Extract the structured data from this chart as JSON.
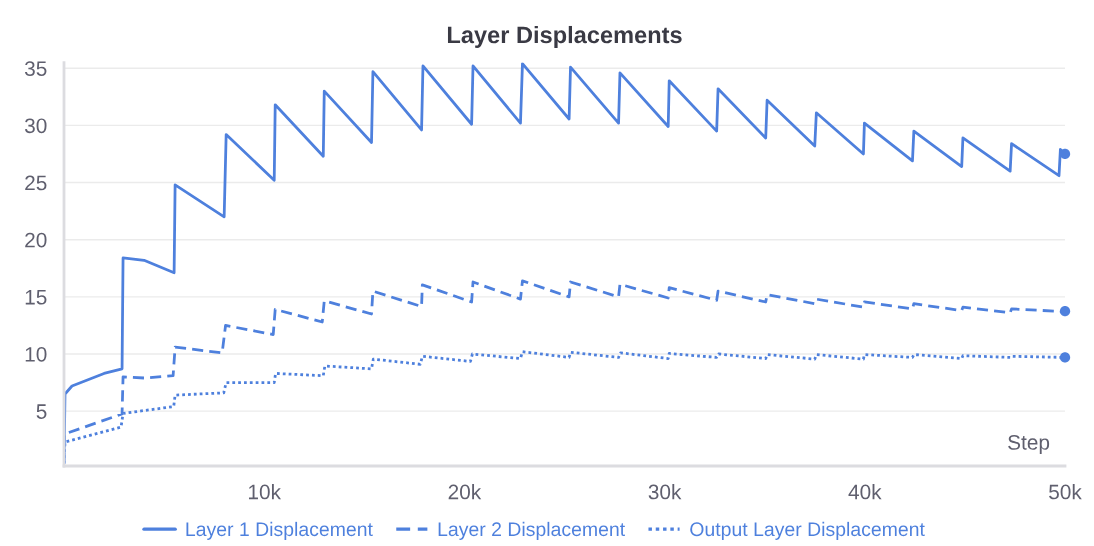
{
  "chart_data": {
    "type": "line",
    "title": "Layer Displacements",
    "xlabel": "Step",
    "xlim": [
      0,
      50000
    ],
    "xticks": [
      {
        "value": 10000,
        "label": "10k"
      },
      {
        "value": 20000,
        "label": "20k"
      },
      {
        "value": 30000,
        "label": "30k"
      },
      {
        "value": 40000,
        "label": "40k"
      },
      {
        "value": 50000,
        "label": "50k"
      }
    ],
    "ylim": [
      0.2,
      35.5
    ],
    "yticks": [
      5,
      10,
      15,
      20,
      25,
      30,
      35
    ],
    "grid": "y",
    "legend": "bottom",
    "series": [
      {
        "name": "Layer 1 Displacement",
        "color": "#4e80dd",
        "line_style": "solid",
        "x": [
          0,
          50,
          400,
          2000,
          2900,
          2950,
          4000,
          5500,
          5550,
          8000,
          8100,
          10500,
          10550,
          12950,
          13000,
          15360,
          15430,
          17860,
          17930,
          20360,
          20430,
          22800,
          22900,
          25230,
          25300,
          27700,
          27770,
          30180,
          30230,
          32600,
          32670,
          35050,
          35120,
          37500,
          37580,
          39930,
          39980,
          42380,
          42450,
          44840,
          44900,
          47260,
          47330,
          49700,
          49770,
          50000
        ],
        "values": [
          0.5,
          6.5,
          7.2,
          8.3,
          8.7,
          18.4,
          18.2,
          17.1,
          24.8,
          22.0,
          29.2,
          25.2,
          31.8,
          27.3,
          33.0,
          28.5,
          34.7,
          29.6,
          35.2,
          30.1,
          35.2,
          30.2,
          35.4,
          30.56,
          35.1,
          30.2,
          34.6,
          29.9,
          33.9,
          29.5,
          33.2,
          28.9,
          32.2,
          28.2,
          31.1,
          27.5,
          30.2,
          26.9,
          29.5,
          26.4,
          28.9,
          26.0,
          28.4,
          25.6,
          27.9,
          27.5
        ]
      },
      {
        "name": "Layer 2 Displacement",
        "color": "#4e80dd",
        "line_style": "dashed",
        "x": [
          0,
          20,
          2900,
          2950,
          4000,
          5450,
          5550,
          7900,
          8070,
          10450,
          10550,
          12900,
          13000,
          15360,
          15430,
          17860,
          17900,
          20360,
          20430,
          22800,
          22900,
          25230,
          25300,
          27700,
          27770,
          30180,
          30230,
          32600,
          32670,
          35050,
          35120,
          37500,
          37580,
          39930,
          39980,
          42380,
          42450,
          44840,
          44900,
          47260,
          47330,
          50000
        ],
        "values": [
          0.4,
          3.0,
          4.75,
          8.0,
          7.9,
          8.1,
          10.6,
          10.1,
          12.5,
          11.7,
          13.9,
          12.8,
          14.65,
          13.5,
          15.5,
          14.15,
          16.05,
          14.55,
          16.3,
          14.8,
          16.4,
          15.0,
          16.3,
          15.0,
          16.1,
          14.9,
          15.8,
          14.7,
          15.5,
          14.55,
          15.2,
          14.4,
          14.8,
          14.1,
          14.55,
          13.95,
          14.4,
          13.8,
          14.1,
          13.6,
          13.95,
          13.7
        ]
      },
      {
        "name": "Output Layer Displacement",
        "color": "#4e80dd",
        "line_style": "dotted",
        "x": [
          0,
          50,
          2850,
          2950,
          5480,
          5550,
          7980,
          8100,
          10500,
          10570,
          12950,
          13030,
          15360,
          15450,
          17800,
          17900,
          20300,
          20400,
          22800,
          22900,
          25230,
          25300,
          27700,
          27800,
          30180,
          30230,
          32600,
          32700,
          35050,
          35120,
          37500,
          37580,
          39930,
          39980,
          42380,
          42450,
          44840,
          44900,
          47260,
          47330,
          50000
        ],
        "values": [
          0.4,
          2.3,
          3.6,
          4.8,
          5.4,
          6.4,
          6.6,
          7.5,
          7.5,
          8.3,
          8.1,
          8.95,
          8.7,
          9.55,
          9.1,
          9.8,
          9.35,
          10.0,
          9.6,
          10.2,
          9.7,
          10.15,
          9.7,
          10.1,
          9.6,
          10.05,
          9.7,
          10.0,
          9.6,
          9.95,
          9.55,
          9.95,
          9.55,
          9.95,
          9.7,
          9.95,
          9.6,
          9.85,
          9.7,
          9.8,
          9.7
        ]
      },
      {
        "type": "scatter",
        "marker": "circle",
        "color": "#4e80dd",
        "x": [
          50000
        ],
        "values": [
          27.5
        ]
      },
      {
        "type": "scatter",
        "marker": "circle",
        "color": "#4e80dd",
        "x": [
          50000
        ],
        "values": [
          13.75
        ]
      },
      {
        "type": "scatter",
        "marker": "circle",
        "color": "#4e80dd",
        "x": [
          50000
        ],
        "values": [
          9.7
        ]
      }
    ]
  }
}
